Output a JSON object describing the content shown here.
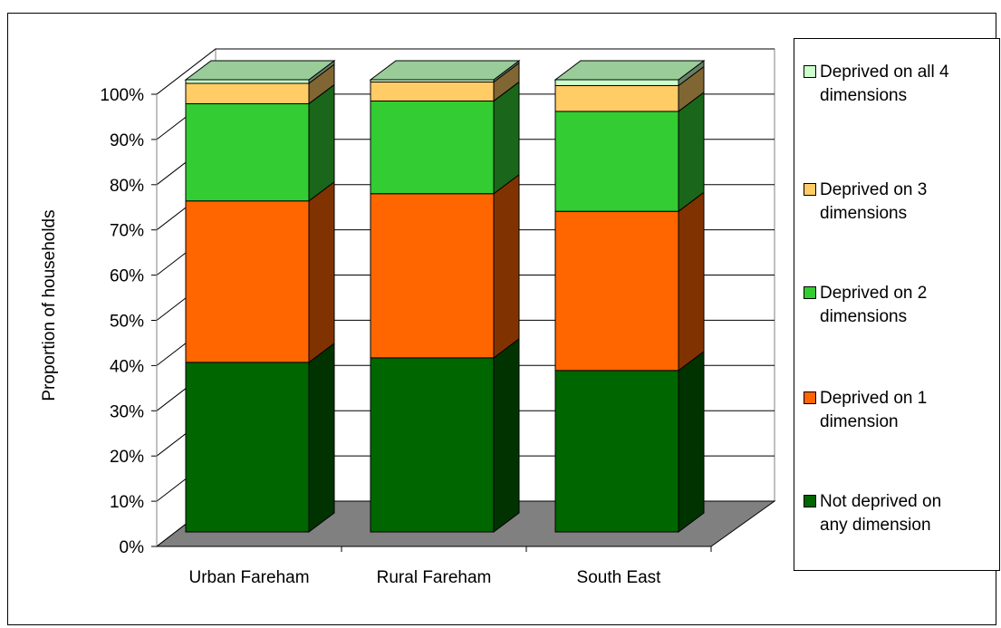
{
  "chart_data": {
    "type": "bar",
    "stacked": true,
    "three_d": true,
    "ylabel": "Proportion of households",
    "xlabel": "",
    "ylim": [
      0,
      100
    ],
    "y_ticks": [
      "0%",
      "10%",
      "20%",
      "30%",
      "40%",
      "50%",
      "60%",
      "70%",
      "80%",
      "90%",
      "100%"
    ],
    "gridlines": true,
    "legend_position": "right",
    "categories": [
      "Urban Fareham",
      "Rural Fareham",
      "South East"
    ],
    "series": [
      {
        "name": "Not deprived on any dimension",
        "values": [
          37.5,
          38.5,
          35.7
        ],
        "color": "#006600",
        "side_color": "#003300"
      },
      {
        "name": "Deprived on 1 dimension",
        "values": [
          35.7,
          36.3,
          35.2
        ],
        "color": "#ff6600",
        "side_color": "#803300"
      },
      {
        "name": "Deprived on 2 dimensions",
        "values": [
          21.5,
          20.5,
          22.1
        ],
        "color": "#33cc33",
        "side_color": "#1a661a"
      },
      {
        "name": "Deprived on 3 dimensions",
        "values": [
          4.5,
          4.2,
          5.7
        ],
        "color": "#ffcc66",
        "side_color": "#806633"
      },
      {
        "name": "Deprived on all 4 dimensions",
        "values": [
          0.8,
          0.5,
          1.3
        ],
        "color": "#ccffcc",
        "side_color": "#668066"
      }
    ]
  },
  "legend": {
    "items": [
      {
        "line1": "Deprived on all 4",
        "line2": "dimensions",
        "color": "#ccffcc"
      },
      {
        "line1": "Deprived on 3",
        "line2": "dimensions",
        "color": "#ffcc66"
      },
      {
        "line1": "Deprived on 2",
        "line2": "dimensions",
        "color": "#33cc33"
      },
      {
        "line1": "Deprived on 1",
        "line2": "dimension",
        "color": "#ff6600"
      },
      {
        "line1": "Not deprived on",
        "line2": "any dimension",
        "color": "#006600"
      }
    ]
  }
}
